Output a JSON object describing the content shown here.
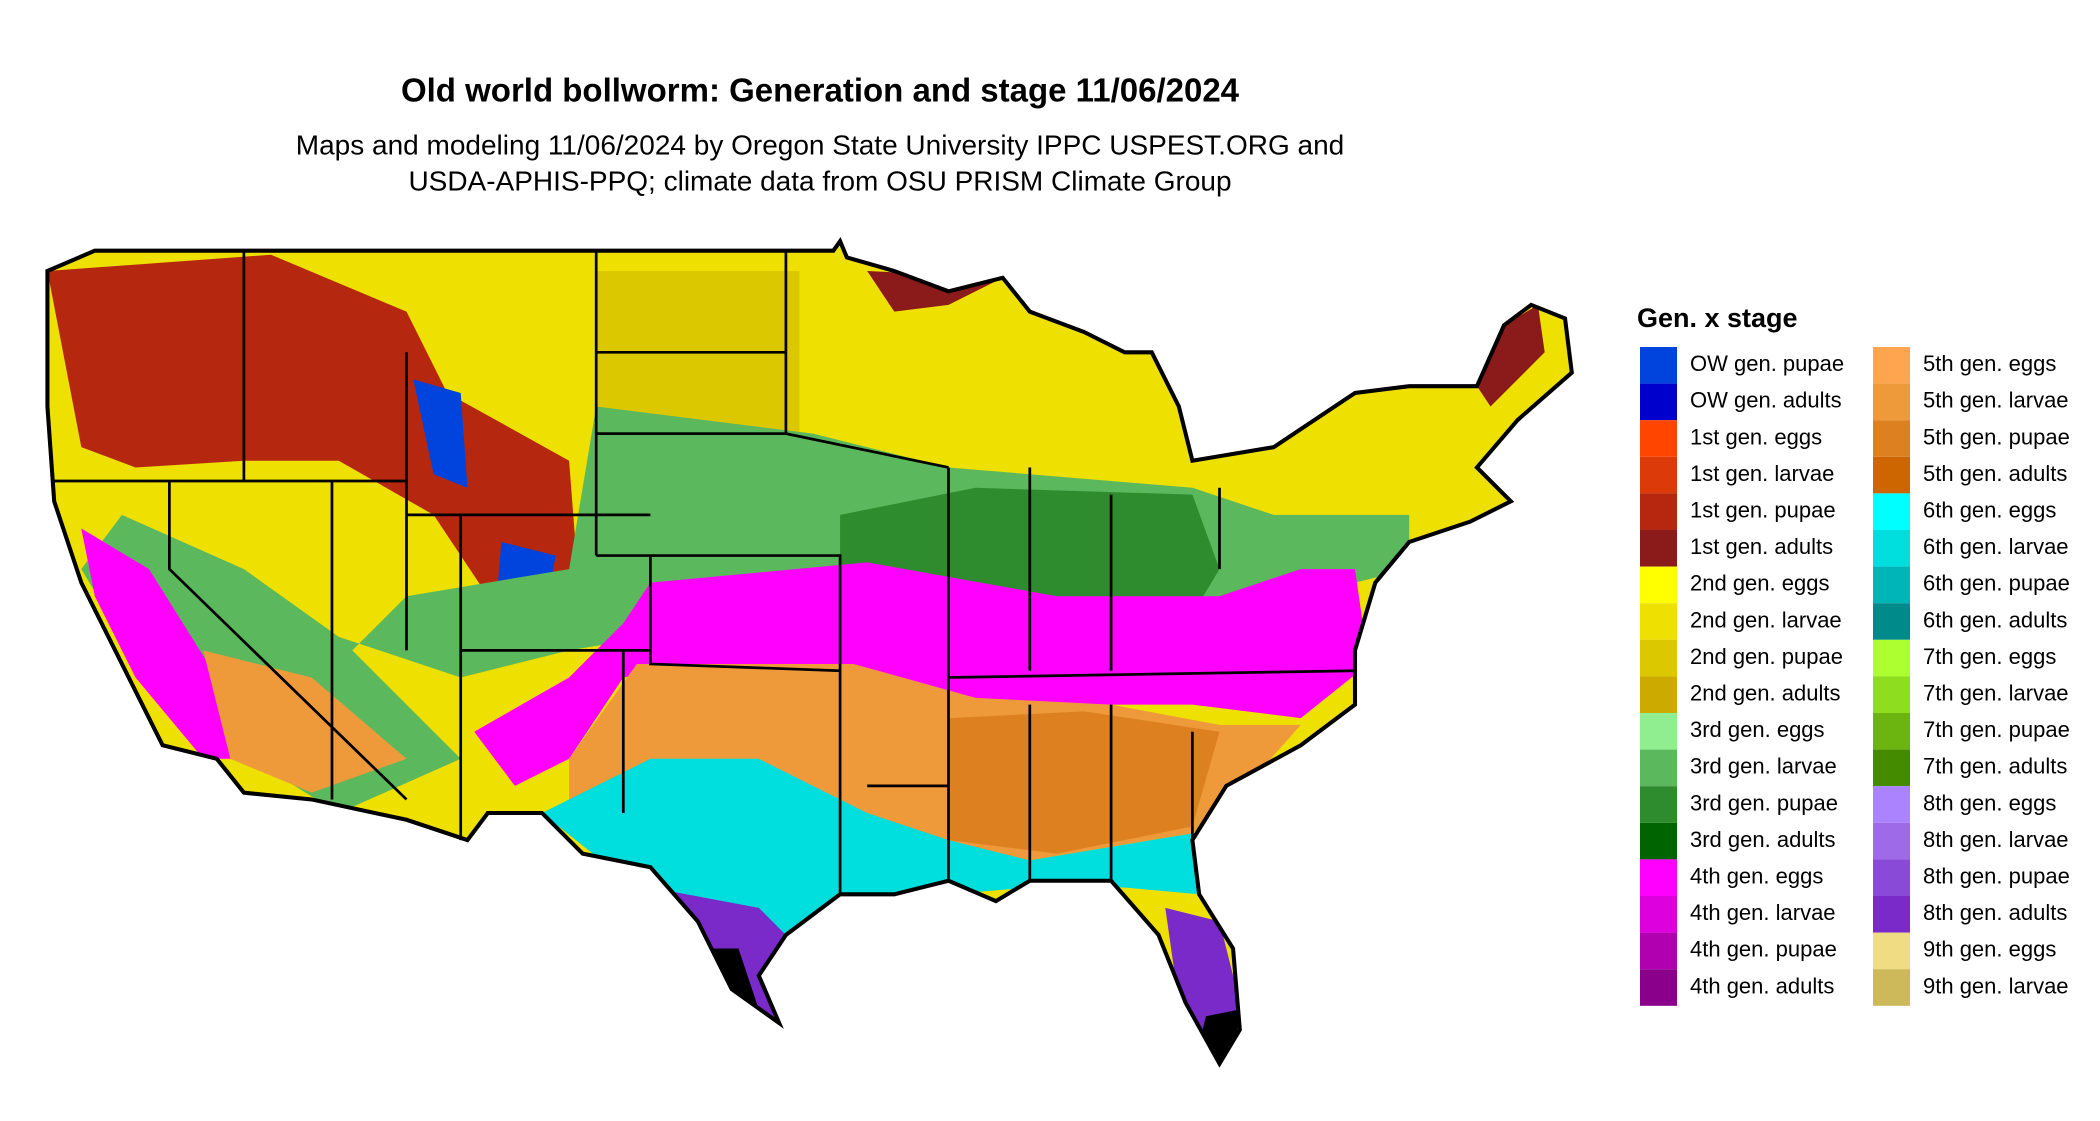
{
  "title": "Old world bollworm: Generation and stage 11/06/2024",
  "subtitle": [
    "Maps and modeling 11/06/2024 by Oregon State University IPPC USPEST.ORG and",
    "USDA-APHIS-PPQ; climate data from OSU PRISM Climate Group"
  ],
  "legend": {
    "title": "Gen. x stage",
    "items": [
      {
        "label": "OW gen. pupae",
        "color": "#0044dd"
      },
      {
        "label": "OW gen. adults",
        "color": "#0000cc"
      },
      {
        "label": "1st gen. eggs",
        "color": "#ff4500"
      },
      {
        "label": "1st gen. larvae",
        "color": "#dd3a0a"
      },
      {
        "label": "1st gen. pupae",
        "color": "#b5280f"
      },
      {
        "label": "1st gen. adults",
        "color": "#8b1a1a"
      },
      {
        "label": "2nd gen. eggs",
        "color": "#ffff00"
      },
      {
        "label": "2nd gen. larvae",
        "color": "#eee000"
      },
      {
        "label": "2nd gen. pupae",
        "color": "#dcc800"
      },
      {
        "label": "2nd gen. adults",
        "color": "#ccaa00"
      },
      {
        "label": "3rd gen. eggs",
        "color": "#90ee90"
      },
      {
        "label": "3rd gen. larvae",
        "color": "#5cb85c"
      },
      {
        "label": "3rd gen. pupae",
        "color": "#2e8b2e"
      },
      {
        "label": "3rd gen. adults",
        "color": "#006400"
      },
      {
        "label": "4th gen. eggs",
        "color": "#ff00ff"
      },
      {
        "label": "4th gen. larvae",
        "color": "#dd00dd"
      },
      {
        "label": "4th gen. pupae",
        "color": "#b000b0"
      },
      {
        "label": "4th gen. adults",
        "color": "#8b008b"
      },
      {
        "label": "5th gen. eggs",
        "color": "#ffa54f"
      },
      {
        "label": "5th gen. larvae",
        "color": "#ee9a3a"
      },
      {
        "label": "5th gen. pupae",
        "color": "#dd8020"
      },
      {
        "label": "5th gen. adults",
        "color": "#cd6600"
      },
      {
        "label": "6th gen. eggs",
        "color": "#00ffff"
      },
      {
        "label": "6th gen. larvae",
        "color": "#00dddd"
      },
      {
        "label": "6th gen. pupae",
        "color": "#00b5b5"
      },
      {
        "label": "6th gen. adults",
        "color": "#008b8b"
      },
      {
        "label": "7th gen. eggs",
        "color": "#adff2f"
      },
      {
        "label": "7th gen. larvae",
        "color": "#8edd1e"
      },
      {
        "label": "7th gen. pupae",
        "color": "#6cb510"
      },
      {
        "label": "7th gen. adults",
        "color": "#458b00"
      },
      {
        "label": "8th gen. eggs",
        "color": "#ab82ff"
      },
      {
        "label": "8th gen. larvae",
        "color": "#9f6ae8"
      },
      {
        "label": "8th gen. pupae",
        "color": "#8a4ad8"
      },
      {
        "label": "8th gen. adults",
        "color": "#7a2ac8"
      },
      {
        "label": "9th gen. eggs",
        "color": "#f0dc82"
      },
      {
        "label": "9th gen. larvae",
        "color": "#cdb95a"
      }
    ]
  }
}
